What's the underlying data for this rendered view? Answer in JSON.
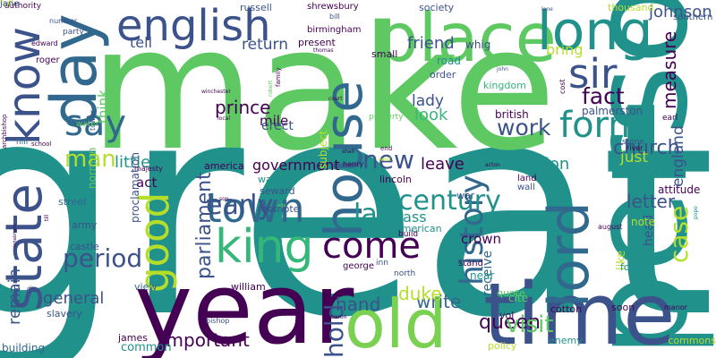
{
  "word_cloud": {
    "words": [
      {
        "text": "great",
        "color": "#21918c"
      },
      {
        "text": "make",
        "color": "#5ec962"
      },
      {
        "text": "person",
        "color": "#21918c"
      },
      {
        "text": "year",
        "color": "#440154"
      },
      {
        "text": "time",
        "color": "#3b528b"
      },
      {
        "text": "old",
        "color": "#7ad151"
      },
      {
        "text": "place",
        "color": "#5ec962"
      },
      {
        "text": "long",
        "color": "#21918c"
      },
      {
        "text": "english",
        "color": "#3b528b"
      },
      {
        "text": "day",
        "color": "#31688e"
      },
      {
        "text": "know",
        "color": "#3b528b"
      },
      {
        "text": "state",
        "color": "#3b528b"
      },
      {
        "text": "house",
        "color": "#31688e"
      },
      {
        "text": "sir",
        "color": "#3b528b"
      },
      {
        "text": "form",
        "color": "#21918c"
      },
      {
        "text": "lord",
        "color": "#31688e"
      },
      {
        "text": "king",
        "color": "#35b779"
      },
      {
        "text": "town",
        "color": "#31688e"
      },
      {
        "text": "come",
        "color": "#440154"
      },
      {
        "text": "good",
        "color": "#b5de2b"
      },
      {
        "text": "say",
        "color": "#31688e"
      },
      {
        "text": "history",
        "color": "#31688e"
      },
      {
        "text": "century",
        "color": "#21918c"
      },
      {
        "text": "late",
        "color": "#21918c"
      },
      {
        "text": "early",
        "color": "#3b528b"
      },
      {
        "text": "period",
        "color": "#3b528b"
      },
      {
        "text": "new",
        "color": "#3b528b"
      },
      {
        "text": "man",
        "color": "#b5de2b"
      },
      {
        "text": "case",
        "color": "#b5de2b"
      },
      {
        "text": "work",
        "color": "#3b528b"
      },
      {
        "text": "fact",
        "color": "#440154"
      },
      {
        "text": "prince",
        "color": "#440154"
      },
      {
        "text": "important",
        "color": "#440154"
      },
      {
        "text": "general",
        "color": "#3b528b"
      },
      {
        "text": "hold",
        "color": "#3b528b"
      },
      {
        "text": "queen",
        "color": "#440154"
      },
      {
        "text": "visit",
        "color": "#5ec962"
      },
      {
        "text": "church",
        "color": "#3b528b"
      },
      {
        "text": "letter",
        "color": "#3b528b"
      },
      {
        "text": "measure",
        "color": "#440154"
      },
      {
        "text": "johnson",
        "color": "#3b528b"
      },
      {
        "text": "london",
        "color": "#21918c"
      },
      {
        "text": "leave",
        "color": "#440154"
      },
      {
        "text": "government",
        "color": "#440154"
      },
      {
        "text": "parliament",
        "color": "#3b528b"
      },
      {
        "text": "little",
        "color": "#21918c"
      },
      {
        "text": "write",
        "color": "#31688e"
      },
      {
        "text": "hand",
        "color": "#3b528b"
      },
      {
        "text": "remain",
        "color": "#3b528b"
      },
      {
        "text": "duke",
        "color": "#b5de2b"
      },
      {
        "text": "friend",
        "color": "#3b528b"
      },
      {
        "text": "look",
        "color": "#35b779"
      },
      {
        "text": "lady",
        "color": "#3b528b"
      },
      {
        "text": "tell",
        "color": "#3b528b"
      },
      {
        "text": "return",
        "color": "#3b528b"
      },
      {
        "text": "bring",
        "color": "#b5de2b"
      },
      {
        "text": "just",
        "color": "#b5de2b"
      },
      {
        "text": "act",
        "color": "#440154"
      },
      {
        "text": "pass",
        "color": "#21918c"
      },
      {
        "text": "crown",
        "color": "#440154"
      },
      {
        "text": "mile",
        "color": "#440154"
      },
      {
        "text": "erect",
        "color": "#3b528b"
      },
      {
        "text": "think",
        "color": "#5ec962"
      },
      {
        "text": "england",
        "color": "#3b528b"
      },
      {
        "text": "receive",
        "color": "#31688e"
      },
      {
        "text": "head",
        "color": "#3b528b"
      },
      {
        "text": "like",
        "color": "#b5de2b"
      },
      {
        "text": "british",
        "color": "#440154"
      },
      {
        "text": "note",
        "color": "#b5de2b"
      },
      {
        "text": "attitude",
        "color": "#440154"
      },
      {
        "text": "palmerston",
        "color": "#3b528b"
      },
      {
        "text": "road",
        "color": "#21918c"
      },
      {
        "text": "order",
        "color": "#3b528b"
      },
      {
        "text": "kingdom",
        "color": "#35b779"
      },
      {
        "text": "subject",
        "color": "#b5de2b"
      },
      {
        "text": "proclamation",
        "color": "#3b528b"
      },
      {
        "text": "america",
        "color": "#440154"
      },
      {
        "text": "american",
        "color": "#21918c"
      },
      {
        "text": "near",
        "color": "#21918c"
      },
      {
        "text": "common",
        "color": "#21918c"
      },
      {
        "text": "slavery",
        "color": "#3b528b"
      },
      {
        "text": "army",
        "color": "#3b528b"
      },
      {
        "text": "street",
        "color": "#31688e"
      },
      {
        "text": "castle",
        "color": "#3b528b"
      },
      {
        "text": "view",
        "color": "#31688e"
      },
      {
        "text": "william",
        "color": "#440154"
      },
      {
        "text": "building",
        "color": "#31688e"
      },
      {
        "text": "james",
        "color": "#440154"
      },
      {
        "text": "cotton",
        "color": "#440154"
      },
      {
        "text": "soon",
        "color": "#440154"
      },
      {
        "text": "policy",
        "color": "#b5de2b"
      },
      {
        "text": "enemy",
        "color": "#21918c"
      },
      {
        "text": "commons",
        "color": "#b5de2b"
      },
      {
        "text": "vol",
        "color": "#440154"
      },
      {
        "text": "quote",
        "color": "#5ec962"
      },
      {
        "text": "cite",
        "color": "#5ec962"
      },
      {
        "text": "footnote",
        "color": "#3b528b"
      },
      {
        "text": "warwick",
        "color": "#21918c"
      },
      {
        "text": "seward",
        "color": "#3b528b"
      },
      {
        "text": "lincoln",
        "color": "#440154"
      },
      {
        "text": "land",
        "color": "#440154"
      },
      {
        "text": "wall",
        "color": "#3b528b"
      },
      {
        "text": "war",
        "color": "#3b528b"
      },
      {
        "text": "foot",
        "color": "#21918c"
      },
      {
        "text": "stand",
        "color": "#440154"
      },
      {
        "text": "george",
        "color": "#440154"
      },
      {
        "text": "inn",
        "color": "#3b528b"
      },
      {
        "text": "north",
        "color": "#3b528b"
      },
      {
        "text": "build",
        "color": "#440154"
      },
      {
        "text": "earl",
        "color": "#440154"
      },
      {
        "text": "stone",
        "color": "#3b528b"
      },
      {
        "text": "river",
        "color": "#440154"
      },
      {
        "text": "society",
        "color": "#3b528b"
      },
      {
        "text": "russell",
        "color": "#3b528b"
      },
      {
        "text": "shrewsbury",
        "color": "#440154"
      },
      {
        "text": "bill",
        "color": "#3b528b"
      },
      {
        "text": "birmingham",
        "color": "#440154"
      },
      {
        "text": "present",
        "color": "#440154"
      },
      {
        "text": "small",
        "color": "#440154"
      },
      {
        "text": "whig",
        "color": "#3b528b"
      },
      {
        "text": "thousand",
        "color": "#b5de2b"
      },
      {
        "text": "southern",
        "color": "#3b528b"
      },
      {
        "text": "authority",
        "color": "#440154"
      },
      {
        "text": "number",
        "color": "#3b528b"
      },
      {
        "text": "party",
        "color": "#3b528b"
      },
      {
        "text": "edward",
        "color": "#440154"
      },
      {
        "text": "roger",
        "color": "#440154"
      },
      {
        "text": "tower",
        "color": "#3b528b"
      },
      {
        "text": "water",
        "color": "#5ec962"
      },
      {
        "text": "norman",
        "color": "#5ec962"
      },
      {
        "text": "hill",
        "color": "#31688e"
      },
      {
        "text": "archbishop",
        "color": "#440154"
      },
      {
        "text": "property",
        "color": "#5ec962"
      },
      {
        "text": "majesty",
        "color": "#440154"
      },
      {
        "text": "henry",
        "color": "#440154"
      },
      {
        "text": "bishop",
        "color": "#3b528b"
      },
      {
        "text": "die",
        "color": "#3b528b"
      },
      {
        "text": "winchester",
        "color": "#440154"
      },
      {
        "text": "manor",
        "color": "#440154"
      },
      {
        "text": "inhabitant",
        "color": "#440154"
      },
      {
        "text": "august",
        "color": "#440154"
      },
      {
        "text": "pope",
        "color": "#21918c"
      },
      {
        "text": "family",
        "color": "#440154"
      },
      {
        "text": "robert",
        "color": "#5ec962"
      },
      {
        "text": "john",
        "color": "#3b528b"
      },
      {
        "text": "thomas",
        "color": "#440154"
      },
      {
        "text": "lane",
        "color": "#3b528b"
      },
      {
        "text": "end",
        "color": "#440154"
      },
      {
        "text": "west",
        "color": "#b5de2b"
      },
      {
        "text": "shall",
        "color": "#440154"
      },
      {
        "text": "acton",
        "color": "#440154"
      },
      {
        "text": "use",
        "color": "#3b528b"
      },
      {
        "text": "age",
        "color": "#5ec962"
      },
      {
        "text": "son",
        "color": "#440154"
      },
      {
        "text": "local",
        "color": "#440154"
      },
      {
        "text": "court",
        "color": "#440154"
      },
      {
        "text": "school",
        "color": "#440154"
      },
      {
        "text": "cost",
        "color": "#440154"
      },
      {
        "text": "iii",
        "color": "#3b528b"
      },
      {
        "text": "baron",
        "color": "#440154"
      },
      {
        "text": "till",
        "color": "#440154"
      },
      {
        "text": "full",
        "color": "#b5de2b"
      },
      {
        "text": "jane",
        "color": "#3b528b"
      }
    ]
  }
}
